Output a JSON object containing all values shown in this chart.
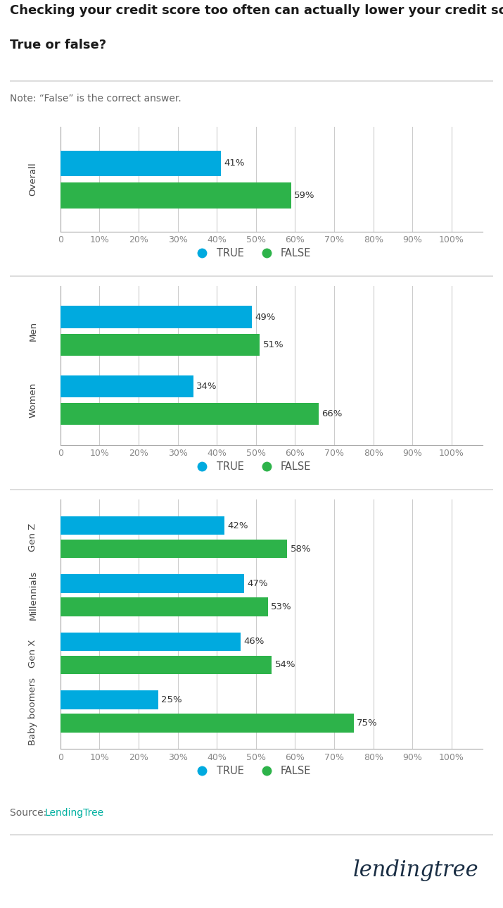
{
  "title_line1": "Checking your credit score too often can actually lower your credit score.",
  "title_line2": "True or false?",
  "note": "Note: “False” is the correct answer.",
  "source_label": "Source: ",
  "source_link": "LendingTree",
  "source_color": "#00b0a0",
  "true_color": "#00aadf",
  "false_color": "#2db34a",
  "chart1": {
    "categories": [
      "Overall"
    ],
    "true_vals": [
      41
    ],
    "false_vals": [
      59
    ]
  },
  "chart2": {
    "categories": [
      "Women",
      "Men"
    ],
    "true_vals": [
      34,
      49
    ],
    "false_vals": [
      66,
      51
    ]
  },
  "chart3": {
    "categories": [
      "Baby boomers",
      "Gen X",
      "Millennials",
      "Gen Z"
    ],
    "true_vals": [
      25,
      46,
      47,
      42
    ],
    "false_vals": [
      75,
      54,
      53,
      58
    ]
  },
  "bg_color": "#ffffff",
  "grid_color": "#cccccc",
  "tick_label_color": "#888888",
  "ylabel_color": "#444444",
  "title_color": "#1a1a1a",
  "note_color": "#666666",
  "bar_height": 0.32,
  "xticks": [
    0,
    10,
    20,
    30,
    40,
    50,
    60,
    70,
    80,
    90,
    100
  ],
  "xtick_labels": [
    "0",
    "10%",
    "20%",
    "30%",
    "40%",
    "50%",
    "60%",
    "70%",
    "80%",
    "90%",
    "100%"
  ]
}
